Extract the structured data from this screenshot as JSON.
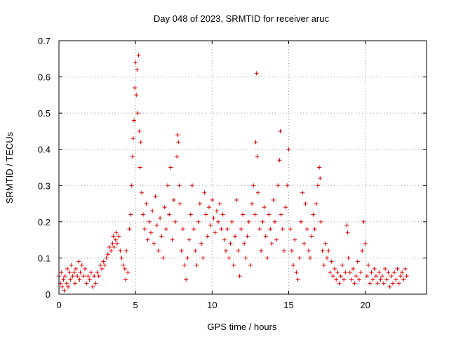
{
  "chart_data": {
    "type": "scatter",
    "title": "Day 048 of 2023, SRMTID for receiver aruc",
    "xlabel": "GPS time / hours",
    "ylabel": "SRMTID / TECUs",
    "xlim": [
      0,
      24
    ],
    "ylim": [
      0,
      0.7
    ],
    "x_ticks": [
      0,
      5,
      10,
      15,
      20
    ],
    "y_ticks": [
      0,
      0.1,
      0.2,
      0.3,
      0.4,
      0.5,
      0.6,
      0.7
    ],
    "x_tick_labels": [
      "0",
      "5",
      "10",
      "15",
      "20"
    ],
    "y_tick_labels": [
      "0",
      "0.1",
      "0.2",
      "0.3",
      "0.4",
      "0.5",
      "0.6",
      "0.7"
    ],
    "grid": true,
    "marker": "+",
    "marker_color": "#e00000",
    "series": [
      {
        "name": "SRMTID",
        "points": [
          [
            0.0,
            0.05
          ],
          [
            0.1,
            0.03
          ],
          [
            0.15,
            0.06
          ],
          [
            0.2,
            0.02
          ],
          [
            0.3,
            0.04
          ],
          [
            0.35,
            0.01
          ],
          [
            0.4,
            0.05
          ],
          [
            0.5,
            0.03
          ],
          [
            0.55,
            0.07
          ],
          [
            0.6,
            0.02
          ],
          [
            0.7,
            0.06
          ],
          [
            0.75,
            0.04
          ],
          [
            0.8,
            0.08
          ],
          [
            0.9,
            0.05
          ],
          [
            1.0,
            0.06
          ],
          [
            1.05,
            0.03
          ],
          [
            1.1,
            0.07
          ],
          [
            1.2,
            0.05
          ],
          [
            1.3,
            0.09
          ],
          [
            1.35,
            0.04
          ],
          [
            1.4,
            0.06
          ],
          [
            1.5,
            0.08
          ],
          [
            1.6,
            0.05
          ],
          [
            1.7,
            0.07
          ],
          [
            1.8,
            0.03
          ],
          [
            1.9,
            0.05
          ],
          [
            2.0,
            0.04
          ],
          [
            2.1,
            0.06
          ],
          [
            2.2,
            0.02
          ],
          [
            2.3,
            0.05
          ],
          [
            2.4,
            0.03
          ],
          [
            2.5,
            0.06
          ],
          [
            2.6,
            0.05
          ],
          [
            2.7,
            0.08
          ],
          [
            2.8,
            0.07
          ],
          [
            2.9,
            0.09
          ],
          [
            3.0,
            0.08
          ],
          [
            3.1,
            0.1
          ],
          [
            3.2,
            0.11
          ],
          [
            3.3,
            0.13
          ],
          [
            3.4,
            0.12
          ],
          [
            3.5,
            0.14
          ],
          [
            3.55,
            0.16
          ],
          [
            3.6,
            0.13
          ],
          [
            3.7,
            0.15
          ],
          [
            3.75,
            0.17
          ],
          [
            3.8,
            0.14
          ],
          [
            3.9,
            0.16
          ],
          [
            4.0,
            0.12
          ],
          [
            4.1,
            0.1
          ],
          [
            4.2,
            0.08
          ],
          [
            4.3,
            0.07
          ],
          [
            4.35,
            0.04
          ],
          [
            4.4,
            0.12
          ],
          [
            4.5,
            0.06
          ],
          [
            4.6,
            0.18
          ],
          [
            4.7,
            0.22
          ],
          [
            4.75,
            0.3
          ],
          [
            4.8,
            0.38
          ],
          [
            4.85,
            0.43
          ],
          [
            4.9,
            0.48
          ],
          [
            4.95,
            0.57
          ],
          [
            5.0,
            0.64
          ],
          [
            5.05,
            0.55
          ],
          [
            5.1,
            0.62
          ],
          [
            5.15,
            0.5
          ],
          [
            5.2,
            0.66
          ],
          [
            5.25,
            0.45
          ],
          [
            5.3,
            0.35
          ],
          [
            5.35,
            0.42
          ],
          [
            5.4,
            0.28
          ],
          [
            5.5,
            0.22
          ],
          [
            5.6,
            0.18
          ],
          [
            5.7,
            0.25
          ],
          [
            5.8,
            0.15
          ],
          [
            5.9,
            0.2
          ],
          [
            6.0,
            0.17
          ],
          [
            6.1,
            0.23
          ],
          [
            6.2,
            0.14
          ],
          [
            6.3,
            0.27
          ],
          [
            6.4,
            0.19
          ],
          [
            6.5,
            0.12
          ],
          [
            6.6,
            0.21
          ],
          [
            6.7,
            0.16
          ],
          [
            6.8,
            0.1
          ],
          [
            6.9,
            0.24
          ],
          [
            7.0,
            0.18
          ],
          [
            7.1,
            0.3
          ],
          [
            7.2,
            0.22
          ],
          [
            7.3,
            0.35
          ],
          [
            7.4,
            0.15
          ],
          [
            7.5,
            0.26
          ],
          [
            7.6,
            0.2
          ],
          [
            7.7,
            0.38
          ],
          [
            7.75,
            0.44
          ],
          [
            7.8,
            0.42
          ],
          [
            7.85,
            0.3
          ],
          [
            7.9,
            0.25
          ],
          [
            8.0,
            0.12
          ],
          [
            8.1,
            0.18
          ],
          [
            8.2,
            0.08
          ],
          [
            8.3,
            0.04
          ],
          [
            8.4,
            0.1
          ],
          [
            8.5,
            0.15
          ],
          [
            8.6,
            0.22
          ],
          [
            8.7,
            0.3
          ],
          [
            8.8,
            0.18
          ],
          [
            8.9,
            0.12
          ],
          [
            9.0,
            0.08
          ],
          [
            9.1,
            0.2
          ],
          [
            9.2,
            0.25
          ],
          [
            9.3,
            0.14
          ],
          [
            9.4,
            0.1
          ],
          [
            9.5,
            0.28
          ],
          [
            9.6,
            0.22
          ],
          [
            9.7,
            0.16
          ],
          [
            9.8,
            0.24
          ],
          [
            9.9,
            0.19
          ],
          [
            10.0,
            0.26
          ],
          [
            10.1,
            0.21
          ],
          [
            10.2,
            0.17
          ],
          [
            10.3,
            0.23
          ],
          [
            10.4,
            0.2
          ],
          [
            10.5,
            0.25
          ],
          [
            10.6,
            0.18
          ],
          [
            10.7,
            0.22
          ],
          [
            10.8,
            0.15
          ],
          [
            10.9,
            0.12
          ],
          [
            11.0,
            0.18
          ],
          [
            11.1,
            0.1
          ],
          [
            11.2,
            0.14
          ],
          [
            11.3,
            0.2
          ],
          [
            11.4,
            0.08
          ],
          [
            11.5,
            0.16
          ],
          [
            11.6,
            0.26
          ],
          [
            11.7,
            0.12
          ],
          [
            11.8,
            0.05
          ],
          [
            11.9,
            0.18
          ],
          [
            12.0,
            0.22
          ],
          [
            12.1,
            0.14
          ],
          [
            12.2,
            0.1
          ],
          [
            12.3,
            0.16
          ],
          [
            12.4,
            0.2
          ],
          [
            12.5,
            0.08
          ],
          [
            12.6,
            0.25
          ],
          [
            12.7,
            0.3
          ],
          [
            12.8,
            0.22
          ],
          [
            12.85,
            0.42
          ],
          [
            12.9,
            0.61
          ],
          [
            12.95,
            0.38
          ],
          [
            13.0,
            0.28
          ],
          [
            13.1,
            0.18
          ],
          [
            13.2,
            0.12
          ],
          [
            13.3,
            0.2
          ],
          [
            13.4,
            0.24
          ],
          [
            13.5,
            0.16
          ],
          [
            13.6,
            0.1
          ],
          [
            13.7,
            0.22
          ],
          [
            13.8,
            0.18
          ],
          [
            13.9,
            0.14
          ],
          [
            14.0,
            0.26
          ],
          [
            14.1,
            0.2
          ],
          [
            14.2,
            0.15
          ],
          [
            14.3,
            0.3
          ],
          [
            14.4,
            0.37
          ],
          [
            14.45,
            0.45
          ],
          [
            14.5,
            0.22
          ],
          [
            14.6,
            0.18
          ],
          [
            14.7,
            0.12
          ],
          [
            14.8,
            0.24
          ],
          [
            14.9,
            0.3
          ],
          [
            15.0,
            0.4
          ],
          [
            15.1,
            0.18
          ],
          [
            15.2,
            0.12
          ],
          [
            15.3,
            0.08
          ],
          [
            15.4,
            0.15
          ],
          [
            15.5,
            0.06
          ],
          [
            15.6,
            0.04
          ],
          [
            15.7,
            0.1
          ],
          [
            15.8,
            0.2
          ],
          [
            15.9,
            0.28
          ],
          [
            16.0,
            0.14
          ],
          [
            16.1,
            0.25
          ],
          [
            16.2,
            0.18
          ],
          [
            16.3,
            0.12
          ],
          [
            16.4,
            0.1
          ],
          [
            16.5,
            0.16
          ],
          [
            16.6,
            0.22
          ],
          [
            16.7,
            0.18
          ],
          [
            16.8,
            0.25
          ],
          [
            16.9,
            0.3
          ],
          [
            17.0,
            0.35
          ],
          [
            17.05,
            0.32
          ],
          [
            17.1,
            0.2
          ],
          [
            17.2,
            0.12
          ],
          [
            17.3,
            0.08
          ],
          [
            17.4,
            0.14
          ],
          [
            17.5,
            0.1
          ],
          [
            17.6,
            0.12
          ],
          [
            17.7,
            0.06
          ],
          [
            17.8,
            0.09
          ],
          [
            17.9,
            0.05
          ],
          [
            18.0,
            0.07
          ],
          [
            18.1,
            0.04
          ],
          [
            18.2,
            0.06
          ],
          [
            18.3,
            0.03
          ],
          [
            18.4,
            0.05
          ],
          [
            18.5,
            0.08
          ],
          [
            18.6,
            0.04
          ],
          [
            18.7,
            0.06
          ],
          [
            18.8,
            0.19
          ],
          [
            18.85,
            0.17
          ],
          [
            18.9,
            0.1
          ],
          [
            19.0,
            0.06
          ],
          [
            19.1,
            0.04
          ],
          [
            19.2,
            0.07
          ],
          [
            19.3,
            0.03
          ],
          [
            19.4,
            0.05
          ],
          [
            19.5,
            0.09
          ],
          [
            19.6,
            0.04
          ],
          [
            19.7,
            0.06
          ],
          [
            19.8,
            0.12
          ],
          [
            19.9,
            0.2
          ],
          [
            20.0,
            0.14
          ],
          [
            20.1,
            0.05
          ],
          [
            20.2,
            0.08
          ],
          [
            20.3,
            0.03
          ],
          [
            20.4,
            0.06
          ],
          [
            20.5,
            0.04
          ],
          [
            20.6,
            0.07
          ],
          [
            20.7,
            0.05
          ],
          [
            20.8,
            0.03
          ],
          [
            20.9,
            0.06
          ],
          [
            21.0,
            0.04
          ],
          [
            21.1,
            0.05
          ],
          [
            21.2,
            0.03
          ],
          [
            21.3,
            0.07
          ],
          [
            21.4,
            0.04
          ],
          [
            21.5,
            0.06
          ],
          [
            21.6,
            0.02
          ],
          [
            21.7,
            0.05
          ],
          [
            21.8,
            0.03
          ],
          [
            21.9,
            0.06
          ],
          [
            22.0,
            0.04
          ],
          [
            22.1,
            0.07
          ],
          [
            22.2,
            0.03
          ],
          [
            22.3,
            0.05
          ],
          [
            22.4,
            0.06
          ],
          [
            22.5,
            0.04
          ],
          [
            22.6,
            0.07
          ],
          [
            22.7,
            0.05
          ]
        ]
      }
    ]
  }
}
